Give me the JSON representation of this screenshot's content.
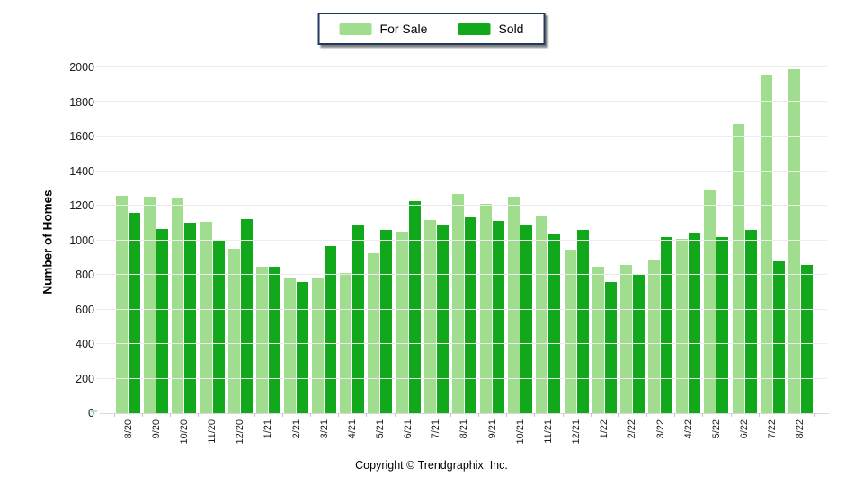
{
  "legend": {
    "items": [
      {
        "label": "For Sale",
        "color": "#A0DD8F"
      },
      {
        "label": "Sold",
        "color": "#12A81C"
      }
    ]
  },
  "footer": {
    "copyright": "Copyright © Trendgraphix, Inc."
  },
  "chart_data": {
    "type": "bar",
    "title": "",
    "ylabel": "Number of Homes",
    "xlabel": "",
    "ylim": [
      0,
      2000
    ],
    "ytick_step": 200,
    "grid": true,
    "legend_position": "top-center",
    "colors": {
      "for_sale": "#A0DD8F",
      "sold": "#12A81C",
      "gridline": "#ececec"
    },
    "categories": [
      "8/20",
      "9/20",
      "10/20",
      "11/20",
      "12/20",
      "1/21",
      "2/21",
      "3/21",
      "4/21",
      "5/21",
      "6/21",
      "7/21",
      "8/21",
      "9/21",
      "10/21",
      "11/21",
      "12/21",
      "1/22",
      "2/22",
      "3/22",
      "4/22",
      "5/22",
      "6/22",
      "7/22",
      "8/22"
    ],
    "series": [
      {
        "name": "For Sale",
        "color": "#A0DD8F",
        "values": [
          1255,
          1250,
          1240,
          1105,
          950,
          845,
          785,
          785,
          810,
          925,
          1050,
          1115,
          1270,
          1210,
          1250,
          1145,
          945,
          845,
          855,
          890,
          1010,
          1290,
          1675,
          1955,
          1990
        ]
      },
      {
        "name": "Sold",
        "color": "#12A81C",
        "values": [
          1160,
          1065,
          1100,
          1000,
          1120,
          845,
          760,
          965,
          1085,
          1060,
          1225,
          1090,
          1135,
          1110,
          1085,
          1040,
          1060,
          760,
          800,
          1020,
          1045,
          1020,
          1060,
          880,
          855
        ]
      }
    ]
  }
}
